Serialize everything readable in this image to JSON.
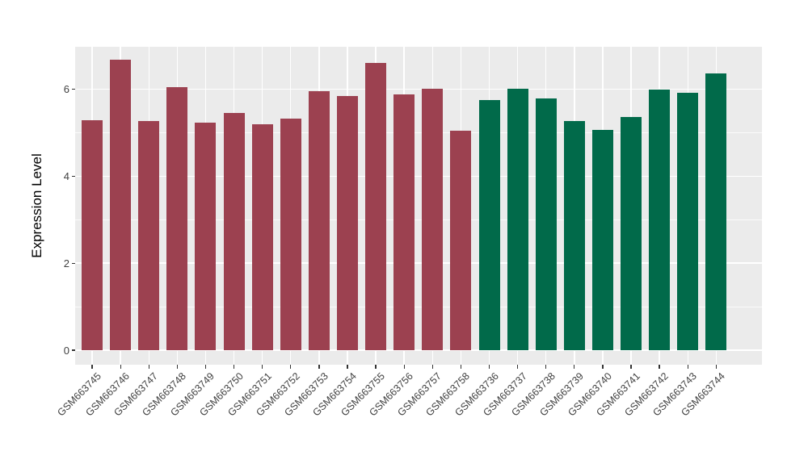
{
  "figure": {
    "background": "#FFFFFF",
    "panel_background": "#EBEBEB",
    "gridline_color": "#FFFFFF"
  },
  "chart_data": {
    "type": "bar",
    "title": "",
    "xlabel": "",
    "ylabel": "Expression Level",
    "legend": "none",
    "grid": "major and minor horizontal, vertical at category centers",
    "yticks": [
      0,
      2,
      4,
      6
    ],
    "ytick_labels": [
      "0",
      "2",
      "4",
      "6"
    ],
    "yminor": [
      1,
      3,
      5
    ],
    "ylim": [
      0,
      6.98
    ],
    "categories": [
      "GSM663745",
      "GSM663746",
      "GSM663747",
      "GSM663748",
      "GSM663749",
      "GSM663750",
      "GSM663751",
      "GSM663752",
      "GSM663753",
      "GSM663754",
      "GSM663755",
      "GSM663756",
      "GSM663757",
      "GSM663758",
      "GSM663736",
      "GSM663737",
      "GSM663738",
      "GSM663739",
      "GSM663740",
      "GSM663741",
      "GSM663742",
      "GSM663743",
      "GSM663744"
    ],
    "values": [
      5.29,
      6.67,
      5.27,
      6.04,
      5.24,
      5.46,
      5.19,
      5.32,
      5.96,
      5.84,
      6.6,
      5.89,
      6.01,
      5.04,
      5.75,
      6.01,
      5.78,
      5.27,
      5.07,
      5.36,
      5.99,
      5.91,
      6.36
    ],
    "bar_colors": [
      "#9C4150",
      "#9C4150",
      "#9C4150",
      "#9C4150",
      "#9C4150",
      "#9C4150",
      "#9C4150",
      "#9C4150",
      "#9C4150",
      "#9C4150",
      "#9C4150",
      "#9C4150",
      "#9C4150",
      "#9C4150",
      "#016A4A",
      "#016A4A",
      "#016A4A",
      "#016A4A",
      "#016A4A",
      "#016A4A",
      "#016A4A",
      "#016A4A",
      "#016A4A"
    ],
    "color_groups": [
      {
        "color": "#9C4150",
        "first_category": "GSM663745",
        "last_category": "GSM663758",
        "count": 14
      },
      {
        "color": "#016A4A",
        "first_category": "GSM663736",
        "last_category": "GSM663744",
        "count": 9
      }
    ]
  }
}
